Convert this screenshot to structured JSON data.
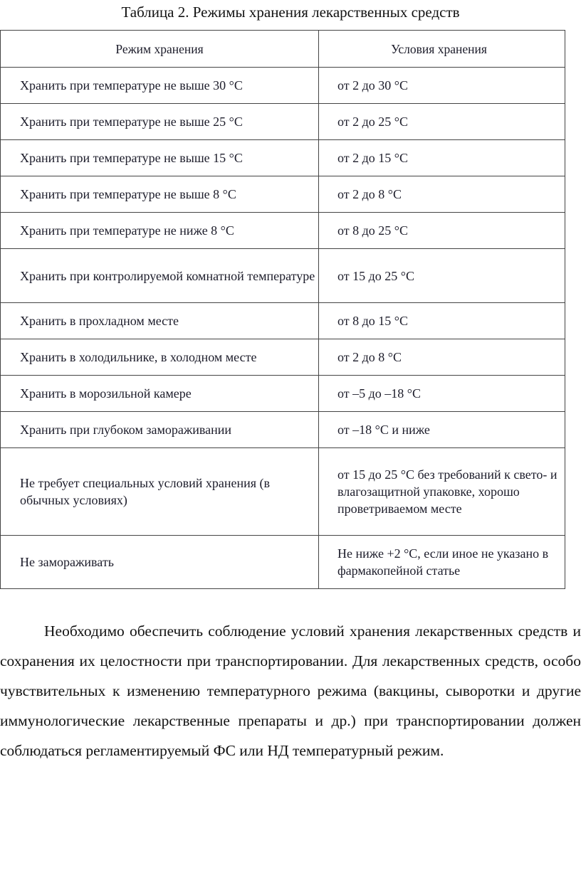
{
  "title": "Таблица 2. Режимы хранения лекарственных средств",
  "table": {
    "headers": [
      "Режим хранения",
      "Условия хранения"
    ],
    "rows": [
      [
        "Хранить при температуре не выше 30 °С",
        "от 2 до 30 °С"
      ],
      [
        "Хранить при температуре не выше 25 °С",
        "от 2 до 25 °С"
      ],
      [
        "Хранить при температуре не выше 15 °С",
        "от 2 до 15 °С"
      ],
      [
        "Хранить при температуре не выше 8 °С",
        "от 2 до 8 °С"
      ],
      [
        "Хранить при температуре не ниже 8 °С",
        "от 8 до 25 °С"
      ],
      [
        "Хранить при контролируемой комнатной температуре",
        "от 15 до 25 °С"
      ],
      [
        "Хранить в прохладном месте",
        "от 8 до 15 °С"
      ],
      [
        "Хранить в холодильнике, в холодном месте",
        "от 2 до 8 °С"
      ],
      [
        "Хранить в морозильной камере",
        "от –5 до –18 °С"
      ],
      [
        "Хранить при глубоком замораживании",
        "от –18 °С и ниже"
      ],
      [
        "Не требует специальных условий хранения (в обычных условиях)",
        "от 15 до 25 °С без требований к свето- и влагозащитной упаковке, хорошо проветриваемом месте"
      ],
      [
        "Не замораживать",
        "Не ниже +2 °С, если иное не указано в фармакопейной статье"
      ]
    ]
  },
  "paragraph": "Необходимо обеспечить соблюдение условий хранения лекарственных средств и сохранения их целостности при транспортировании. Для лекарственных средств, особо чувствительных к изменению температурного режима (вакцины, сыворотки и другие иммунологические лекарственные препараты и др.) при транспортировании должен соблюдаться регламентируемый ФС или НД температурный режим."
}
